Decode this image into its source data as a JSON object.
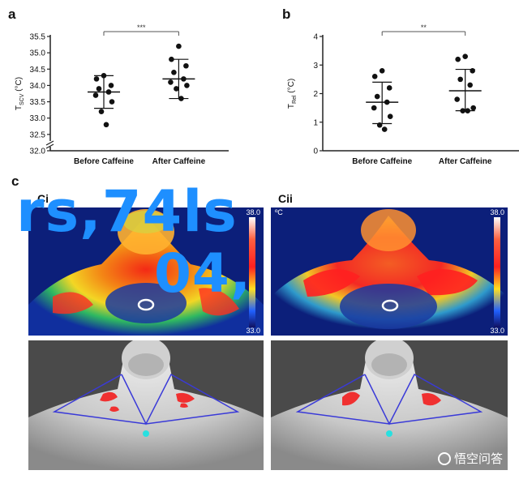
{
  "panels": {
    "a_letter": "a",
    "b_letter": "b",
    "c_letter": "c",
    "ci_label": "Ci",
    "cii_label": "Cii"
  },
  "chart_data": [
    {
      "type": "scatter",
      "panel": "a",
      "ylabel": "T_SCV (°C)",
      "ylabel_main": "T",
      "ylabel_sub": "SCV",
      "ylabel_unit": " (°C)",
      "categories": [
        "Before Caffeine",
        "After Caffeine"
      ],
      "ylim": [
        32.0,
        35.5
      ],
      "yticks": [
        "32.0",
        "32.5",
        "33.0",
        "33.5",
        "34.0",
        "34.5",
        "35.0",
        "35.5"
      ],
      "axis_break": true,
      "significance": "***",
      "groups": [
        {
          "name": "Before Caffeine",
          "mean": 33.8,
          "sd_low": 33.3,
          "sd_high": 34.3,
          "points": [
            34.3,
            34.2,
            34.0,
            33.9,
            33.8,
            33.7,
            33.5,
            33.2,
            32.8
          ]
        },
        {
          "name": "After Caffeine",
          "mean": 34.2,
          "sd_low": 33.6,
          "sd_high": 34.8,
          "points": [
            35.2,
            34.8,
            34.6,
            34.4,
            34.2,
            34.1,
            34.0,
            33.9,
            33.6
          ]
        }
      ]
    },
    {
      "type": "scatter",
      "panel": "b",
      "ylabel": "T_Rel (°C)",
      "ylabel_main": "T",
      "ylabel_sub": "Rel",
      "ylabel_unit": " (°C)",
      "categories": [
        "Before Caffeine",
        "After Caffeine"
      ],
      "ylim": [
        0,
        4
      ],
      "yticks": [
        "0",
        "1",
        "2",
        "3",
        "4"
      ],
      "significance": "**",
      "groups": [
        {
          "name": "Before Caffeine",
          "mean": 1.7,
          "sd_low": 0.95,
          "sd_high": 2.4,
          "points": [
            2.8,
            2.6,
            2.2,
            1.9,
            1.7,
            1.5,
            1.2,
            0.9,
            0.75
          ]
        },
        {
          "name": "After Caffeine",
          "mean": 2.1,
          "sd_low": 1.4,
          "sd_high": 2.85,
          "points": [
            3.3,
            3.2,
            2.8,
            2.5,
            2.3,
            1.8,
            1.5,
            1.4,
            1.4
          ]
        }
      ]
    }
  ],
  "thermal": {
    "scale_max": "38.0",
    "scale_min": "33.0",
    "unit": "ºC"
  },
  "overlay": {
    "line1": "rs,74ls",
    "line2": "04,"
  },
  "watermark": {
    "text": "悟空问答"
  },
  "colors": {
    "overlay_blue": "#1e8fff",
    "roi_blue": "#3a3ad8",
    "hotspot_red": "#f03030",
    "marker_cyan": "#28e0e0"
  }
}
